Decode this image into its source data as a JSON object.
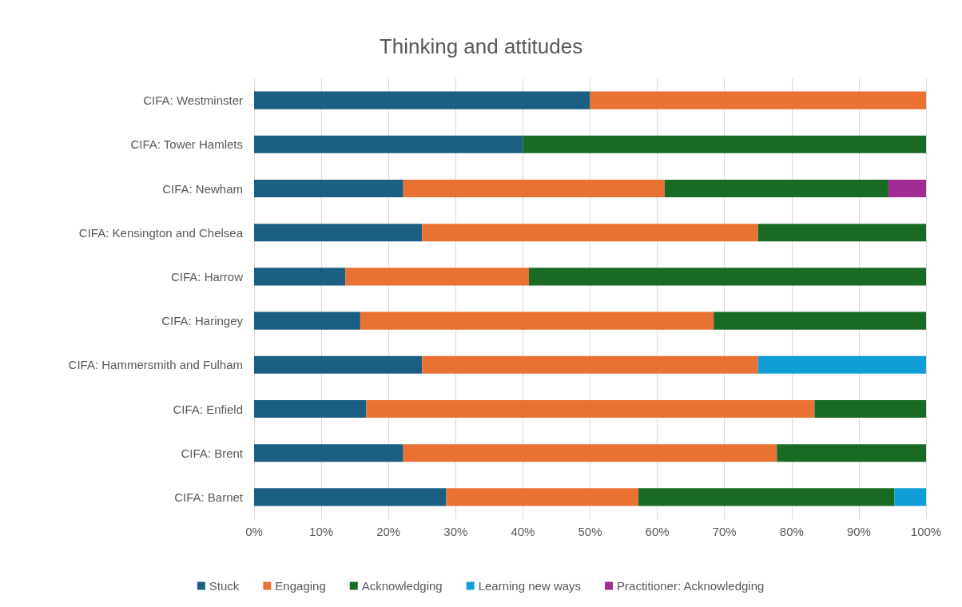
{
  "chart_data": {
    "type": "bar",
    "title": "Thinking and attitudes",
    "orientation": "horizontal",
    "stacked": true,
    "categories": [
      "CIFA: Westminster",
      "CIFA: Tower Hamlets",
      "CIFA: Newham",
      "CIFA: Kensington and Chelsea",
      "CIFA: Harrow",
      "CIFA: Haringey",
      "CIFA: Hammersmith and Fulham",
      "CIFA: Enfield",
      "CIFA: Brent",
      "CIFA: Barnet"
    ],
    "series": [
      {
        "name": "Stuck",
        "color": "#1a5e82",
        "values": [
          50,
          40,
          22.2,
          25,
          13.6,
          15.8,
          25,
          16.7,
          22.2,
          28.6
        ]
      },
      {
        "name": "Engaging",
        "color": "#e97132",
        "values": [
          50,
          null,
          38.9,
          50,
          27.3,
          52.6,
          50,
          66.7,
          55.6,
          28.6
        ]
      },
      {
        "name": "Acknowledging",
        "color": "#196b24",
        "values": [
          null,
          60,
          33.3,
          25,
          59.1,
          31.6,
          null,
          16.7,
          22.2,
          38.1
        ]
      },
      {
        "name": "Learning new ways",
        "color": "#0f9ed5",
        "values": [
          null,
          null,
          null,
          null,
          null,
          null,
          25,
          null,
          null,
          4.8
        ]
      },
      {
        "name": "Practitioner: Acknowledging",
        "color": "#a02b93",
        "values": [
          null,
          null,
          5.6,
          null,
          null,
          null,
          null,
          null,
          null,
          null
        ]
      }
    ],
    "xlim": [
      0,
      100
    ],
    "xticks": [
      {
        "value": 0,
        "label": "0%"
      },
      {
        "value": 10,
        "label": "10%"
      },
      {
        "value": 20,
        "label": "20%"
      },
      {
        "value": 30,
        "label": "30%"
      },
      {
        "value": 40,
        "label": "40%"
      },
      {
        "value": 50,
        "label": "50%"
      },
      {
        "value": 60,
        "label": "60%"
      },
      {
        "value": 70,
        "label": "70%"
      },
      {
        "value": 80,
        "label": "80%"
      },
      {
        "value": 90,
        "label": "90%"
      },
      {
        "value": 100,
        "label": "100%"
      }
    ],
    "grid": "x",
    "legend": "bottom"
  }
}
